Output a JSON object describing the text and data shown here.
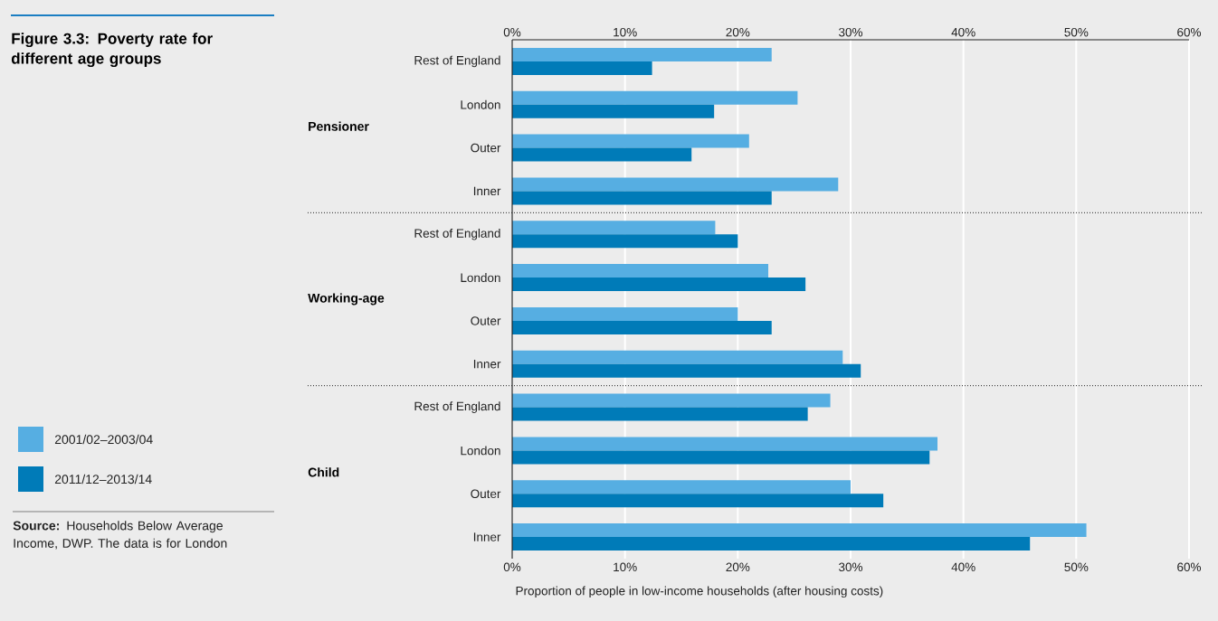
{
  "chart_data": {
    "type": "bar",
    "orientation": "horizontal",
    "title": "Figure 3.3: Poverty rate for different age groups",
    "xlabel": "Proportion of people in low-income households (after housing costs)",
    "categories": [
      "Rest of England",
      "London",
      "Outer",
      "Inner",
      "Rest of England",
      "London",
      "Outer",
      "Inner",
      "Rest of England",
      "London",
      "Outer",
      "Inner"
    ],
    "series": [
      {
        "name": "2001/02–2003/04",
        "color": "#56aee2",
        "values": [
          23.0,
          25.3,
          21.0,
          28.9,
          18.0,
          22.7,
          20.0,
          29.3,
          28.2,
          37.7,
          30.0,
          50.9
        ]
      },
      {
        "name": "2011/12–2013/14",
        "color": "#007bb8",
        "values": [
          12.4,
          17.9,
          15.9,
          23.0,
          20.0,
          26.0,
          23.0,
          30.9,
          26.2,
          37.0,
          32.9,
          45.9
        ]
      }
    ],
    "xlim": [
      0,
      60
    ],
    "xticks": [
      {
        "value": 0,
        "label": "0%"
      },
      {
        "value": 10,
        "label": "10%"
      },
      {
        "value": 20,
        "label": "20%"
      },
      {
        "value": 30,
        "label": "30%"
      },
      {
        "value": 40,
        "label": "40%"
      },
      {
        "value": 50,
        "label": "50%"
      },
      {
        "value": 60,
        "label": "60%"
      }
    ],
    "x2lim": [
      0,
      60
    ],
    "x2ticks": [
      {
        "value": 0,
        "label": "0%"
      },
      {
        "value": 10,
        "label": "10%"
      },
      {
        "value": 20,
        "label": "20%"
      },
      {
        "value": 30,
        "label": "30%"
      },
      {
        "value": 40,
        "label": "40%"
      },
      {
        "value": 50,
        "label": "50%"
      },
      {
        "value": 60,
        "label": "60%"
      }
    ],
    "grid": "x",
    "legend": "left",
    "annotations": [
      "Pensioner",
      "Working-age",
      "Child",
      "**Source:** Households Below Average Income, DWP. The data is for London"
    ]
  }
}
